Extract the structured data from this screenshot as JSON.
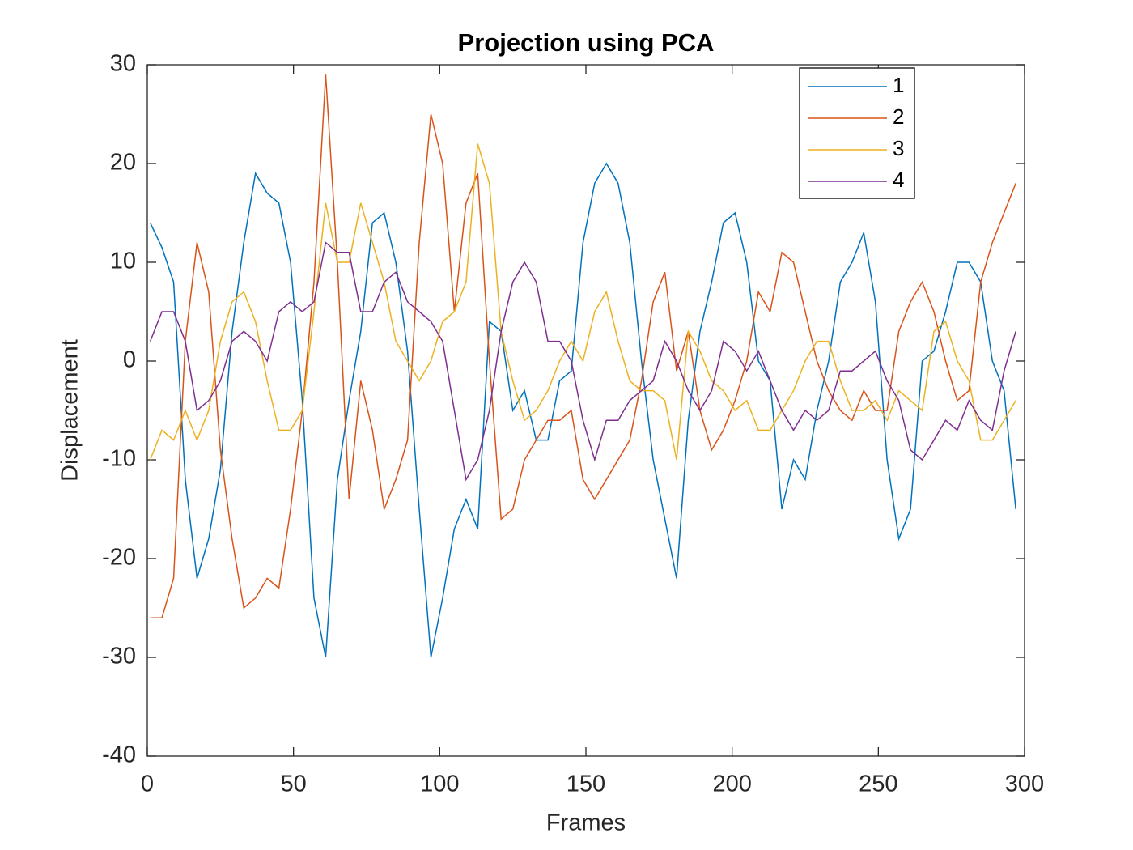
{
  "chart_data": {
    "type": "line",
    "title": "Projection using PCA",
    "x_label": "Frames",
    "y_label": "Displacement",
    "x": [
      1,
      5,
      9,
      13,
      17,
      21,
      25,
      29,
      33,
      37,
      41,
      45,
      49,
      53,
      57,
      61,
      65,
      69,
      73,
      77,
      81,
      85,
      89,
      93,
      97,
      101,
      105,
      109,
      113,
      117,
      121,
      125,
      129,
      133,
      137,
      141,
      145,
      149,
      153,
      157,
      161,
      165,
      169,
      173,
      177,
      181,
      185,
      189,
      193,
      197,
      201,
      205,
      209,
      213,
      217,
      221,
      225,
      229,
      233,
      237,
      241,
      245,
      249,
      253,
      257,
      261,
      265,
      269,
      273,
      277,
      281,
      285,
      289,
      293,
      297
    ],
    "series": [
      {
        "name": "1",
        "color": "#0072BD",
        "values": [
          14,
          11.5,
          8,
          -12,
          -22,
          -18,
          -11,
          3,
          12,
          19,
          17,
          16,
          10,
          -4,
          -24,
          -30,
          -12,
          -4,
          3,
          14,
          15,
          10,
          1,
          -15,
          -30,
          -24,
          -17,
          -14,
          -17,
          4,
          3,
          -5,
          -3,
          -8,
          -8,
          -2,
          -1,
          12,
          18,
          20,
          18,
          12,
          0,
          -10,
          -16,
          -22,
          -6,
          3,
          8,
          14,
          15,
          10,
          0,
          -2,
          -15,
          -10,
          -12,
          -5,
          0,
          8,
          10,
          13,
          6,
          -10,
          -18,
          -15,
          0,
          1,
          5,
          10,
          10,
          8,
          0,
          -3,
          -15
        ]
      },
      {
        "name": "2",
        "color": "#D95319",
        "values": [
          -26,
          -26,
          -22,
          2,
          12,
          7,
          -9,
          -18,
          -25,
          -24,
          -22,
          -23,
          -15,
          -5,
          8,
          29,
          10,
          -14,
          -2,
          -7,
          -15,
          -12,
          -8,
          12,
          25,
          20,
          5,
          16,
          19,
          0,
          -16,
          -15,
          -10,
          -8,
          -6,
          -6,
          -5,
          -12,
          -14,
          -12,
          -10,
          -8,
          -2,
          6,
          9,
          -1,
          3,
          -5,
          -9,
          -7,
          -4,
          0,
          7,
          5,
          11,
          10,
          5,
          0,
          -3,
          -5,
          -6,
          -3,
          -5,
          -5,
          3,
          6,
          8,
          5,
          0,
          -4,
          -3,
          8,
          12,
          15,
          18
        ]
      },
      {
        "name": "3",
        "color": "#EDB120",
        "values": [
          -10,
          -7,
          -8,
          -5,
          -8,
          -5,
          2,
          6,
          7,
          4,
          -2,
          -7,
          -7,
          -5,
          5,
          16,
          10,
          10,
          16,
          12,
          8,
          2,
          0,
          -2,
          0,
          4,
          5,
          8,
          22,
          18,
          3,
          -2,
          -6,
          -5,
          -3,
          0,
          2,
          0,
          5,
          7,
          2,
          -2,
          -3,
          -3,
          -4,
          -10,
          3,
          1,
          -2,
          -3,
          -5,
          -4,
          -7,
          -7,
          -5,
          -3,
          0,
          2,
          2,
          -2,
          -5,
          -5,
          -4,
          -6,
          -3,
          -4,
          -5,
          3,
          4,
          0,
          -2,
          -8,
          -8,
          -6,
          -4
        ]
      },
      {
        "name": "4",
        "color": "#7E2F8E",
        "values": [
          2,
          5,
          5,
          2,
          -5,
          -4,
          -2,
          2,
          3,
          2,
          0,
          5,
          6,
          5,
          6,
          12,
          11,
          11,
          5,
          5,
          8,
          9,
          6,
          5,
          4,
          2,
          -5,
          -12,
          -10,
          -5,
          3,
          8,
          10,
          8,
          2,
          2,
          0,
          -6,
          -10,
          -6,
          -6,
          -4,
          -3,
          -2,
          2,
          0,
          -3,
          -5,
          -3,
          2,
          1,
          -1,
          1,
          -2,
          -5,
          -7,
          -5,
          -6,
          -5,
          -1,
          -1,
          0,
          1,
          -2,
          -4,
          -9,
          -10,
          -8,
          -6,
          -7,
          -4,
          -6,
          -7,
          -1,
          3
        ]
      }
    ],
    "xlim": [
      0,
      300
    ],
    "xticks": [
      0,
      50,
      100,
      150,
      200,
      250,
      300
    ],
    "ylim": [
      -40,
      30
    ],
    "yticks": [
      -40,
      -30,
      -20,
      -10,
      0,
      10,
      20,
      30
    ],
    "legend": "upper right"
  }
}
